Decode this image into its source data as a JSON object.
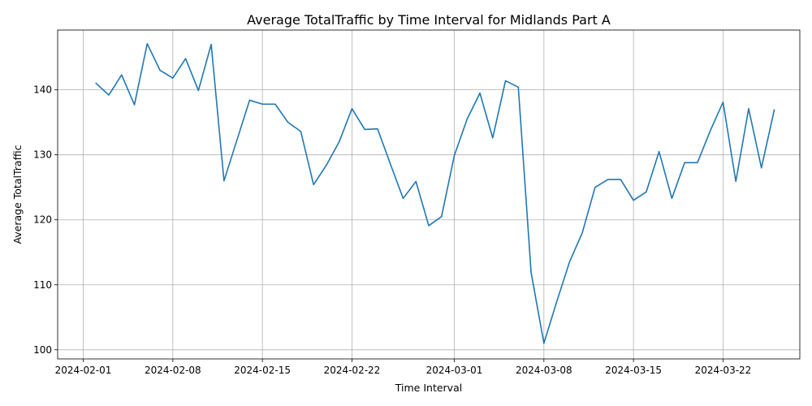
{
  "chart_data": {
    "type": "line",
    "title": "Average TotalTraffic by Time Interval for Midlands Part A",
    "xlabel": "Time Interval",
    "ylabel": "Average TotalTraffic",
    "grid": true,
    "line_color": "#1f77b4",
    "xlim": [
      "2024-01-30",
      "2024-03-28"
    ],
    "ylim": [
      98.6,
      149.2
    ],
    "xticks": [
      "2024-02-01",
      "2024-02-08",
      "2024-02-15",
      "2024-02-22",
      "2024-03-01",
      "2024-03-08",
      "2024-03-15",
      "2024-03-22"
    ],
    "yticks": [
      100,
      110,
      120,
      130,
      140
    ],
    "series": [
      {
        "x": [
          "2024-02-02",
          "2024-02-03",
          "2024-02-04",
          "2024-02-05",
          "2024-02-06",
          "2024-02-07",
          "2024-02-08",
          "2024-02-09",
          "2024-02-10",
          "2024-02-11",
          "2024-02-12",
          "2024-02-13",
          "2024-02-14",
          "2024-02-15",
          "2024-02-16",
          "2024-02-17",
          "2024-02-18",
          "2024-02-19",
          "2024-02-20",
          "2024-02-21",
          "2024-02-22",
          "2024-02-23",
          "2024-02-24",
          "2024-02-25",
          "2024-02-26",
          "2024-02-27",
          "2024-02-28",
          "2024-02-29",
          "2024-03-01",
          "2024-03-02",
          "2024-03-03",
          "2024-03-04",
          "2024-03-05",
          "2024-03-06",
          "2024-03-07",
          "2024-03-08",
          "2024-03-09",
          "2024-03-10",
          "2024-03-11",
          "2024-03-12",
          "2024-03-13",
          "2024-03-14",
          "2024-03-15",
          "2024-03-16",
          "2024-03-17",
          "2024-03-18",
          "2024-03-19",
          "2024-03-20",
          "2024-03-21",
          "2024-03-22",
          "2024-03-23",
          "2024-03-24",
          "2024-03-25",
          "2024-03-26"
        ],
        "values": [
          141.0,
          139.2,
          142.3,
          137.7,
          147.1,
          143.0,
          141.8,
          144.8,
          139.9,
          147.0,
          126.0,
          132.2,
          138.4,
          137.8,
          137.8,
          135.0,
          133.6,
          125.4,
          128.4,
          132.0,
          137.1,
          133.9,
          134.0,
          128.6,
          123.3,
          125.9,
          119.1,
          120.5,
          129.9,
          135.5,
          139.5,
          132.6,
          141.4,
          140.4,
          111.9,
          101.0,
          107.4,
          113.5,
          118.0,
          125.0,
          126.2,
          126.2,
          123.0,
          124.3,
          130.5,
          123.3,
          128.8,
          128.8,
          133.7,
          138.1,
          125.9,
          137.1,
          128.0,
          136.9
        ]
      }
    ]
  }
}
